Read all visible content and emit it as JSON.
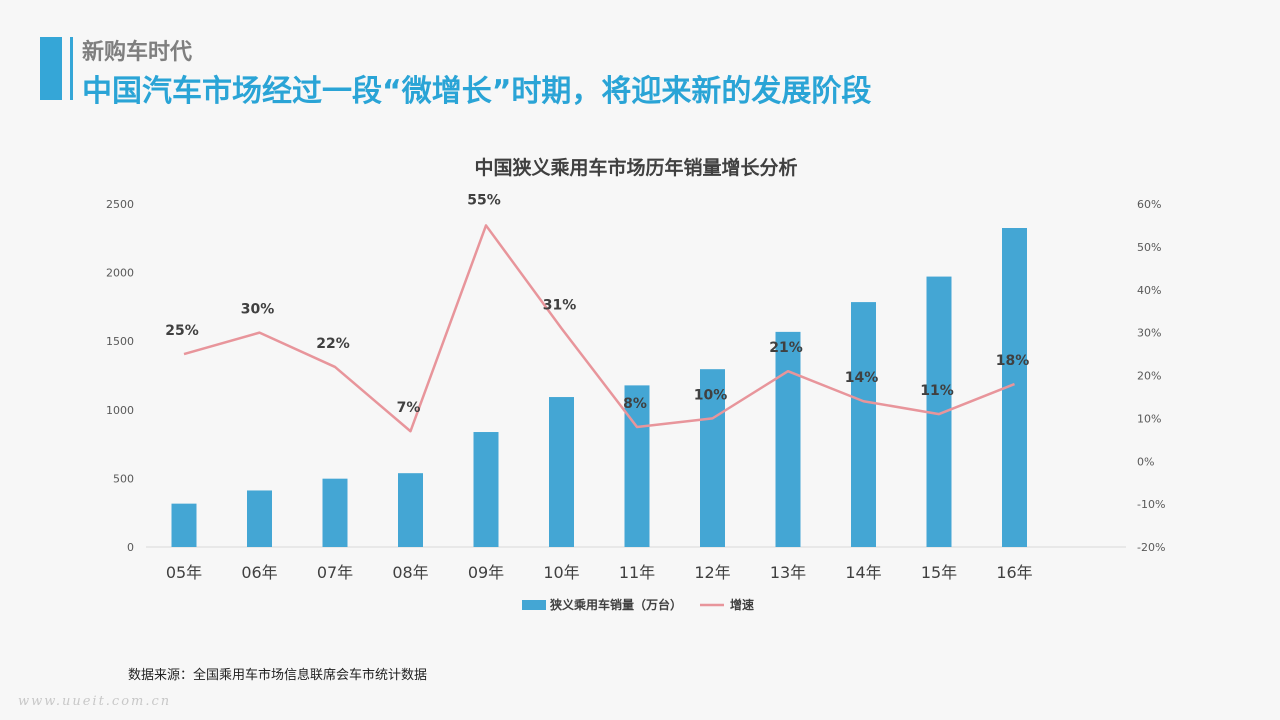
{
  "header": {
    "subtitle": "新购车时代",
    "headline": "中国汽车市场经过一段“微增长”时期，将迎来新的发展阶段"
  },
  "chart_data": {
    "type": "bar",
    "title": "中国狭义乘用车市场历年销量增长分析",
    "categories": [
      "05年",
      "06年",
      "07年",
      "08年",
      "09年",
      "10年",
      "11年",
      "12年",
      "13年",
      "14年",
      "15年",
      "16年"
    ],
    "series": [
      {
        "name": "狭义乘用车销量（万台）",
        "type": "bar",
        "axis": "left",
        "color": "#44a6d4",
        "values": [
          316,
          412,
          498,
          538,
          838,
          1093,
          1178,
          1296,
          1568,
          1785,
          1971,
          2325
        ]
      },
      {
        "name": "增速",
        "type": "line",
        "axis": "right",
        "color": "#e8959b",
        "values": [
          25,
          30,
          22,
          7,
          55,
          31,
          8,
          10,
          21,
          14,
          11,
          18
        ],
        "labels": [
          "25%",
          "30%",
          "22%",
          "7%",
          "55%",
          "31%",
          "8%",
          "10%",
          "21%",
          "14%",
          "11%",
          "18%"
        ]
      }
    ],
    "y_left": {
      "min": 0,
      "max": 2500,
      "ticks": [
        "0",
        "500",
        "1000",
        "1500",
        "2000",
        "2500"
      ]
    },
    "y_right": {
      "min": -20,
      "max": 60,
      "ticks": [
        "-20%",
        "-10%",
        "0%",
        "10%",
        "20%",
        "30%",
        "40%",
        "50%",
        "60%"
      ]
    },
    "legend_position": "bottom",
    "grid": false
  },
  "footer": {
    "source": "数据来源：全国乘用车市场信息联席会车市统计数据",
    "watermark": "www.uueit.com.cn"
  }
}
